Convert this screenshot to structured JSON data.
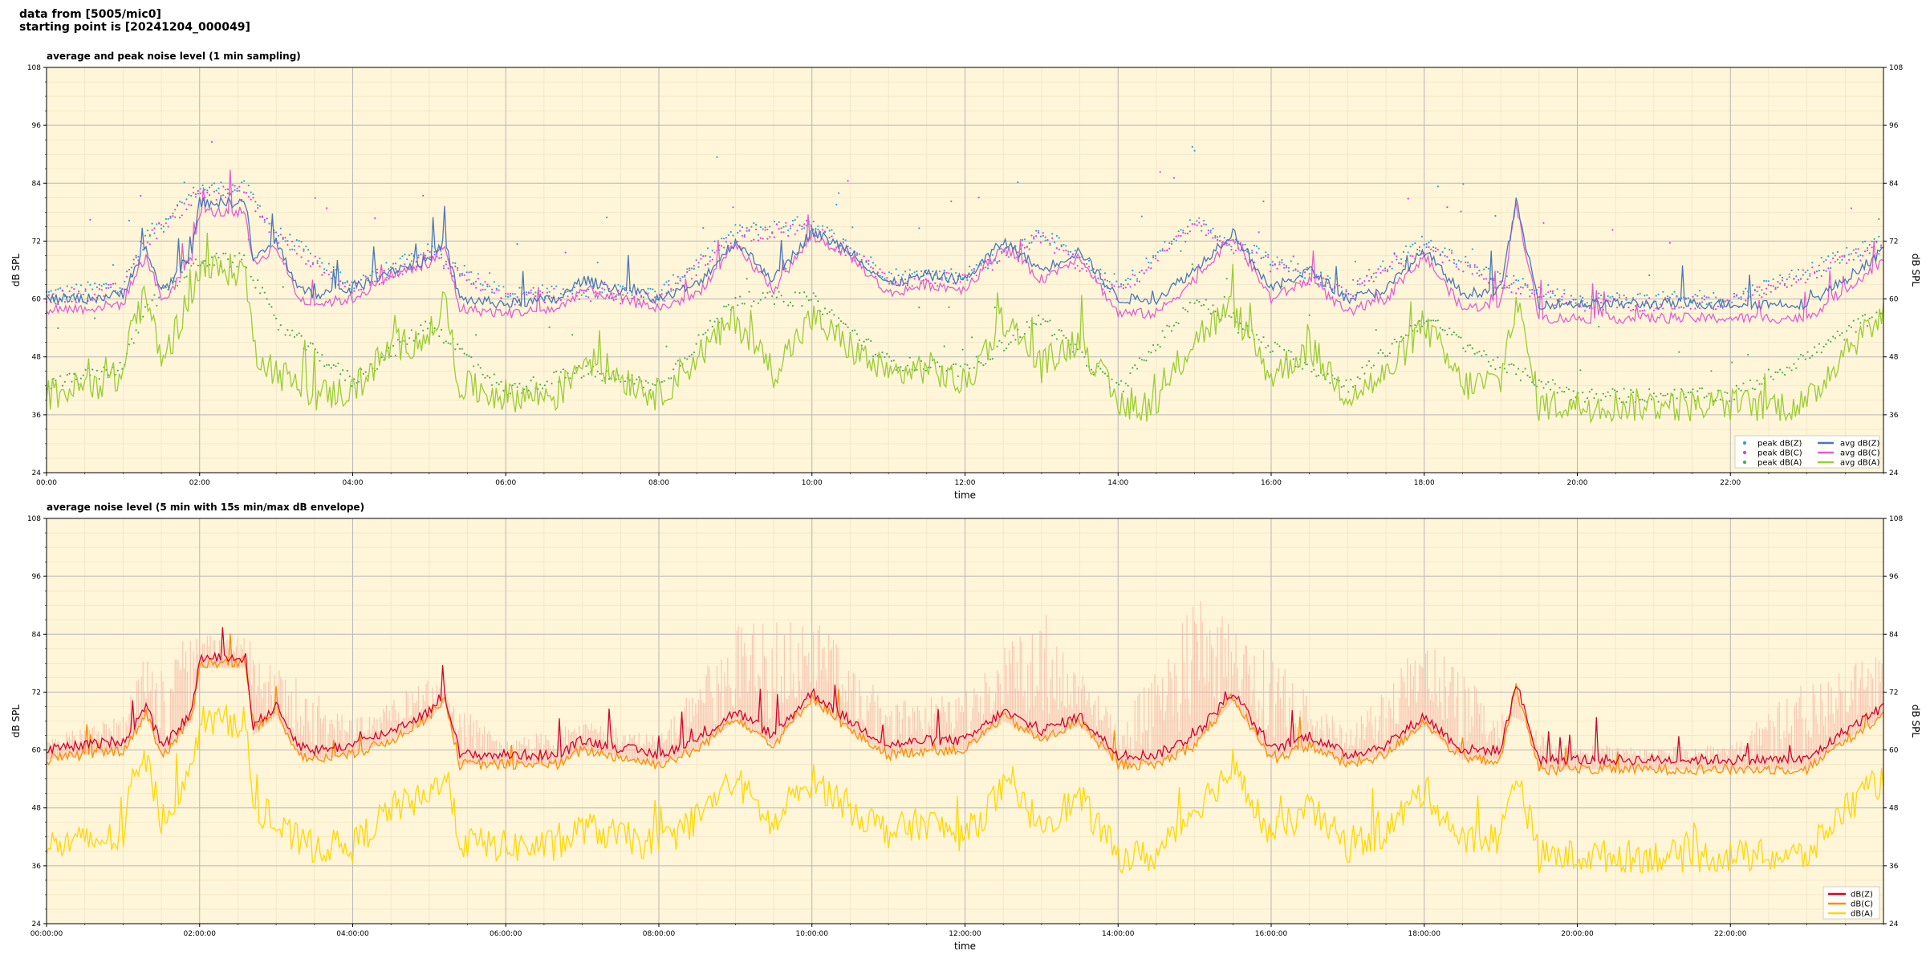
{
  "header": {
    "line1": "data from [5005/mic0]",
    "line2": "starting point is [20241204_000049]"
  },
  "colors": {
    "plot_bg": "#fff5d8",
    "major_grid": "#b8b8b8",
    "minor_grid": "#ece0c0",
    "peak_z": "#2aa5d8",
    "peak_c": "#e040e0",
    "peak_a": "#4caf50",
    "avg_z": "#4a78b8",
    "avg_c": "#e060d0",
    "avg_a": "#9acd32",
    "dbz": "#d6002c",
    "dbc": "#ff8c00",
    "dba": "#ffd700",
    "envelope": "#f4b8a8"
  },
  "chart_data": [
    {
      "type": "scatter",
      "title": "average and peak noise level (1 min sampling)",
      "xlabel": "time",
      "ylabel": "dB SPL",
      "xlim": [
        "00:00",
        "24:00"
      ],
      "ylim": [
        24,
        108
      ],
      "yticks": [
        "108",
        "96",
        "84",
        "72",
        "60",
        "48",
        "36",
        "24"
      ],
      "xticks": [
        "00:00",
        "02:00",
        "04:00",
        "06:00",
        "08:00",
        "10:00",
        "12:00",
        "14:00",
        "16:00",
        "18:00",
        "20:00",
        "22:00"
      ],
      "grid": true,
      "legend_position": "bottom-right",
      "legend": [
        "peak dB(Z)",
        "peak dB(C)",
        "peak dB(A)",
        "avg dB(Z)",
        "avg dB(C)",
        "avg dB(A)"
      ],
      "series": [
        {
          "name": "avg dB(Z)",
          "x": [
            0,
            0.5,
            1.0,
            1.1,
            1.3,
            1.5,
            1.6,
            1.9,
            2.0,
            2.3,
            2.6,
            2.7,
            3.0,
            3.3,
            3.5,
            4.0,
            4.5,
            5.0,
            5.2,
            5.4,
            6.0,
            6.7,
            7.0,
            8.0,
            8.5,
            9.0,
            9.5,
            10.0,
            10.5,
            11.0,
            11.5,
            12.0,
            12.5,
            13.0,
            13.5,
            14.0,
            14.5,
            15.0,
            15.5,
            16.0,
            16.5,
            17.0,
            17.5,
            18.0,
            18.5,
            19.0,
            19.2,
            19.5,
            20.0,
            21.0,
            22.0,
            23.0,
            23.5,
            24.0
          ],
          "y": [
            60,
            60,
            61,
            65,
            70,
            62,
            63,
            70,
            80,
            80,
            80,
            68,
            72,
            62,
            61,
            62,
            66,
            68,
            72,
            60,
            59,
            60,
            64,
            60,
            63,
            72,
            64,
            74,
            70,
            63,
            65,
            64,
            72,
            66,
            70,
            60,
            60,
            66,
            74,
            62,
            66,
            60,
            62,
            70,
            61,
            62,
            80,
            59,
            59,
            59,
            59,
            59,
            64,
            70
          ]
        },
        {
          "name": "avg dB(C)",
          "x": [
            0,
            0.5,
            1.0,
            1.1,
            1.3,
            1.5,
            1.6,
            1.9,
            2.0,
            2.3,
            2.6,
            2.7,
            3.0,
            3.3,
            3.5,
            4.0,
            4.5,
            5.0,
            5.2,
            5.4,
            6.0,
            6.7,
            7.0,
            8.0,
            8.5,
            9.0,
            9.5,
            10.0,
            10.5,
            11.0,
            11.5,
            12.0,
            12.5,
            13.0,
            13.5,
            14.0,
            14.5,
            15.0,
            15.5,
            16.0,
            16.5,
            17.0,
            17.5,
            18.0,
            18.5,
            19.0,
            19.2,
            19.5,
            20.0,
            21.0,
            22.0,
            23.0,
            23.5,
            24.0
          ],
          "y": [
            58,
            58,
            59,
            63,
            69,
            60,
            61,
            69,
            78,
            78,
            78,
            67,
            71,
            60,
            59,
            60,
            65,
            67,
            71,
            58,
            57,
            58,
            62,
            58,
            61,
            71,
            62,
            73,
            69,
            61,
            63,
            62,
            71,
            64,
            69,
            57,
            57,
            64,
            73,
            60,
            64,
            57,
            60,
            69,
            58,
            59,
            80,
            56,
            56,
            56,
            56,
            56,
            62,
            68
          ]
        },
        {
          "name": "avg dB(A)",
          "x": [
            0,
            0.5,
            1.0,
            1.1,
            1.3,
            1.5,
            1.6,
            1.9,
            2.0,
            2.3,
            2.6,
            2.7,
            3.0,
            3.3,
            3.5,
            4.0,
            4.5,
            5.0,
            5.2,
            5.4,
            6.0,
            6.7,
            7.0,
            8.0,
            8.5,
            9.0,
            9.5,
            10.0,
            10.5,
            11.0,
            11.5,
            12.0,
            12.5,
            13.0,
            13.5,
            14.0,
            14.5,
            15.0,
            15.5,
            16.0,
            16.5,
            17.0,
            17.5,
            18.0,
            18.5,
            19.0,
            19.2,
            19.5,
            20.0,
            21.0,
            22.0,
            23.0,
            23.5,
            24.0
          ],
          "y": [
            40,
            42,
            44,
            55,
            60,
            48,
            50,
            62,
            66,
            66,
            66,
            50,
            45,
            42,
            40,
            41,
            50,
            52,
            60,
            42,
            40,
            40,
            48,
            40,
            48,
            56,
            45,
            56,
            50,
            44,
            46,
            42,
            56,
            46,
            52,
            38,
            38,
            52,
            58,
            44,
            50,
            40,
            44,
            55,
            42,
            43,
            60,
            38,
            38,
            38,
            38,
            38,
            50,
            56
          ]
        },
        {
          "name": "peak dB(Z)",
          "x": [
            0,
            1.0,
            1.3,
            2.0,
            2.6,
            3.0,
            4.0,
            5.0,
            6.0,
            7.0,
            8.0,
            9.0,
            10.0,
            11.0,
            12.0,
            13.0,
            14.0,
            15.0,
            16.0,
            17.0,
            18.0,
            19.0,
            20.0,
            21.0,
            22.0,
            23.0,
            24.0
          ],
          "y": [
            61,
            63,
            73,
            83,
            83,
            74,
            63,
            70,
            61,
            62,
            61,
            74,
            76,
            65,
            65,
            74,
            62,
            76,
            68,
            62,
            72,
            64,
            60,
            60,
            60,
            66,
            72
          ]
        },
        {
          "name": "peak dB(C)",
          "x": [
            0,
            1.0,
            1.3,
            2.0,
            2.6,
            3.0,
            4.0,
            5.0,
            6.0,
            7.0,
            8.0,
            9.0,
            10.0,
            11.0,
            12.0,
            13.0,
            14.0,
            15.0,
            16.0,
            17.0,
            18.0,
            19.0,
            20.0,
            21.0,
            22.0,
            23.0,
            24.0
          ],
          "y": [
            60,
            62,
            72,
            82,
            82,
            73,
            62,
            69,
            60,
            61,
            60,
            73,
            75,
            64,
            64,
            73,
            61,
            75,
            67,
            61,
            71,
            63,
            59,
            59,
            59,
            65,
            71
          ]
        },
        {
          "name": "peak dB(A)",
          "x": [
            0,
            1.0,
            1.3,
            2.0,
            2.6,
            3.0,
            4.0,
            5.0,
            6.0,
            7.0,
            8.0,
            9.0,
            10.0,
            11.0,
            12.0,
            13.0,
            14.0,
            15.0,
            16.0,
            17.0,
            18.0,
            19.0,
            20.0,
            21.0,
            22.0,
            23.0,
            24.0
          ],
          "y": [
            42,
            46,
            58,
            68,
            68,
            55,
            43,
            55,
            41,
            45,
            42,
            60,
            60,
            47,
            45,
            56,
            41,
            60,
            50,
            42,
            56,
            46,
            40,
            40,
            40,
            48,
            58
          ]
        }
      ]
    },
    {
      "type": "line",
      "title": "average noise level (5 min with 15s min/max dB envelope)",
      "xlabel": "time",
      "ylabel": "dB SPL",
      "xlim": [
        "00:00:00",
        "24:00:00"
      ],
      "ylim": [
        24,
        108
      ],
      "yticks": [
        "108",
        "96",
        "84",
        "72",
        "60",
        "48",
        "36",
        "24"
      ],
      "xticks": [
        "00:00:00",
        "02:00:00",
        "04:00:00",
        "06:00:00",
        "08:00:00",
        "10:00:00",
        "12:00:00",
        "14:00:00",
        "16:00:00",
        "18:00:00",
        "20:00:00",
        "22:00:00"
      ],
      "grid": true,
      "legend_position": "bottom-right",
      "legend": [
        "dB(Z)",
        "dB(C)",
        "dB(A)"
      ],
      "series": [
        {
          "name": "dB(Z)",
          "x": [
            0,
            0.5,
            1.0,
            1.1,
            1.3,
            1.5,
            1.6,
            1.9,
            2.0,
            2.3,
            2.6,
            2.7,
            3.0,
            3.3,
            3.5,
            4.0,
            4.5,
            5.0,
            5.2,
            5.4,
            6.0,
            6.7,
            7.0,
            8.0,
            8.5,
            9.0,
            9.5,
            10.0,
            10.5,
            11.0,
            11.5,
            12.0,
            12.5,
            13.0,
            13.5,
            14.0,
            14.5,
            15.0,
            15.5,
            16.0,
            16.5,
            17.0,
            17.5,
            18.0,
            18.5,
            19.0,
            19.2,
            19.5,
            20.0,
            21.0,
            22.0,
            23.0,
            23.5,
            24.0
          ],
          "y": [
            60,
            61,
            62,
            64,
            69,
            61,
            62,
            68,
            79,
            79,
            79,
            65,
            69,
            61,
            60,
            61,
            64,
            68,
            72,
            59,
            59,
            59,
            62,
            59,
            62,
            68,
            63,
            72,
            66,
            61,
            62,
            62,
            68,
            64,
            67,
            59,
            59,
            63,
            72,
            60,
            63,
            59,
            61,
            67,
            60,
            60,
            74,
            58,
            58,
            58,
            58,
            58,
            64,
            69
          ]
        },
        {
          "name": "dB(C)",
          "x": [
            0,
            0.5,
            1.0,
            1.1,
            1.3,
            1.5,
            1.6,
            1.9,
            2.0,
            2.3,
            2.6,
            2.7,
            3.0,
            3.3,
            3.5,
            4.0,
            4.5,
            5.0,
            5.2,
            5.4,
            6.0,
            6.7,
            7.0,
            8.0,
            8.5,
            9.0,
            9.5,
            10.0,
            10.5,
            11.0,
            11.5,
            12.0,
            12.5,
            13.0,
            13.5,
            14.0,
            14.5,
            15.0,
            15.5,
            16.0,
            16.5,
            17.0,
            17.5,
            18.0,
            18.5,
            19.0,
            19.2,
            19.5,
            20.0,
            21.0,
            22.0,
            23.0,
            23.5,
            24.0
          ],
          "y": [
            58,
            59,
            60,
            62,
            68,
            59,
            60,
            67,
            78,
            78,
            78,
            64,
            68,
            59,
            58,
            59,
            62,
            67,
            71,
            57,
            57,
            57,
            60,
            57,
            60,
            67,
            61,
            71,
            64,
            59,
            60,
            60,
            67,
            62,
            66,
            57,
            57,
            61,
            71,
            58,
            61,
            57,
            59,
            66,
            58,
            58,
            73,
            56,
            56,
            56,
            56,
            56,
            62,
            67
          ]
        },
        {
          "name": "dB(A)",
          "x": [
            0,
            0.5,
            1.0,
            1.1,
            1.3,
            1.5,
            1.6,
            1.9,
            2.0,
            2.3,
            2.6,
            2.7,
            3.0,
            3.3,
            3.5,
            4.0,
            4.5,
            5.0,
            5.2,
            5.4,
            6.0,
            6.7,
            7.0,
            8.0,
            8.5,
            9.0,
            9.5,
            10.0,
            10.5,
            11.0,
            11.5,
            12.0,
            12.5,
            13.0,
            13.5,
            14.0,
            14.5,
            15.0,
            15.5,
            16.0,
            16.5,
            17.0,
            17.5,
            18.0,
            18.5,
            19.0,
            19.2,
            19.5,
            20.0,
            21.0,
            22.0,
            23.0,
            23.5,
            24.0
          ],
          "y": [
            40,
            41,
            42,
            52,
            58,
            46,
            48,
            55,
            66,
            66,
            66,
            48,
            44,
            41,
            40,
            40,
            48,
            50,
            56,
            41,
            40,
            40,
            44,
            40,
            46,
            54,
            44,
            54,
            48,
            43,
            45,
            42,
            52,
            45,
            50,
            38,
            38,
            48,
            56,
            42,
            48,
            40,
            43,
            52,
            41,
            42,
            56,
            38,
            38,
            38,
            38,
            38,
            48,
            54
          ]
        },
        {
          "name": "envelope max",
          "x": [
            0,
            1.0,
            1.3,
            2.0,
            2.6,
            3.0,
            4.0,
            5.0,
            6.0,
            7.0,
            8.0,
            9.0,
            10.0,
            11.0,
            12.0,
            13.0,
            14.0,
            15.0,
            16.0,
            17.0,
            18.0,
            19.0,
            20.0,
            21.0,
            22.0,
            23.0,
            24.0
          ],
          "y": [
            62,
            68,
            80,
            84,
            84,
            78,
            66,
            75,
            62,
            66,
            63,
            86,
            88,
            70,
            72,
            90,
            65,
            92,
            80,
            64,
            84,
            68,
            61,
            61,
            61,
            75,
            80
          ]
        }
      ]
    }
  ]
}
